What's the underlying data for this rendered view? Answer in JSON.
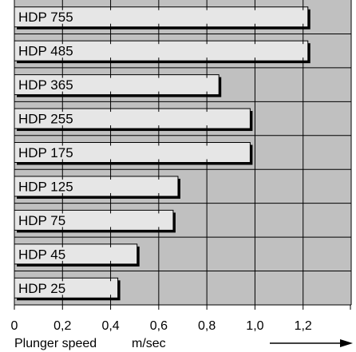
{
  "chart_data": {
    "type": "bar",
    "orientation": "horizontal",
    "categories": [
      "HDP 755",
      "HDP 485",
      "HDP 365",
      "HDP 255",
      "HDP 175",
      "HDP 125",
      "HDP 75",
      "HDP 45",
      "HDP 25"
    ],
    "values": [
      1.22,
      1.22,
      0.85,
      0.98,
      0.98,
      0.68,
      0.66,
      0.51,
      0.43
    ],
    "xlim": [
      0,
      1.4
    ],
    "xticks": [
      "0",
      "0,2",
      "0,4",
      "0,6",
      "0,8",
      "1,0",
      "1,2"
    ],
    "xlabel": "Plunger speed",
    "xunit": "m/sec",
    "grid": true,
    "colors": {
      "plot_background": "#c0c0c0",
      "bar_fill": "#e6e6e6",
      "bar_shadow": "#000000",
      "grid": "#000000"
    }
  }
}
